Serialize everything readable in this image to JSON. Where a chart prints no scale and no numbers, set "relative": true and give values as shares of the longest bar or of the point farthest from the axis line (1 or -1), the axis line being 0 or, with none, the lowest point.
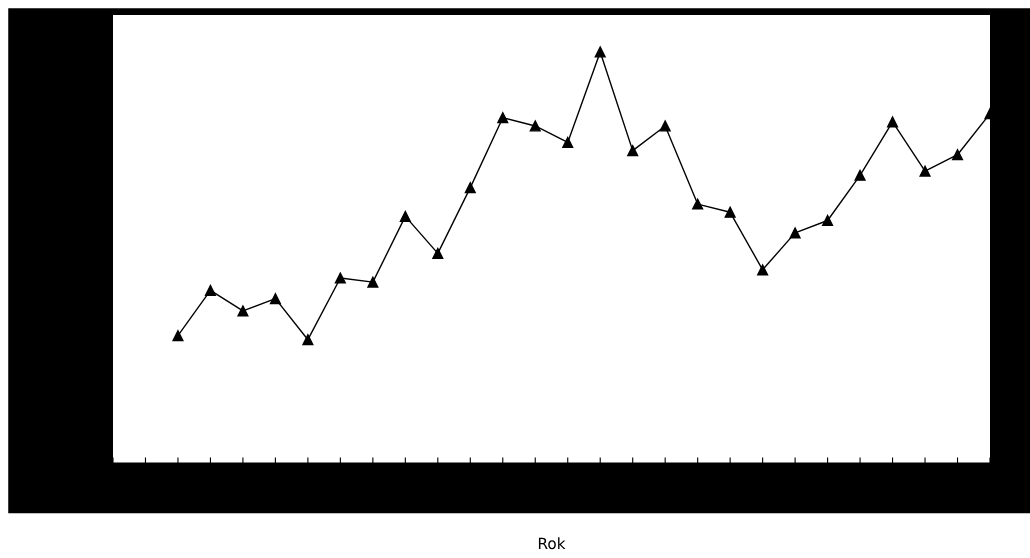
{
  "chart_data": {
    "type": "line",
    "relative": true,
    "xlabel": "Rok",
    "marker": "triangle",
    "line_style": "solid",
    "grid": false,
    "legend": false,
    "categories": [
      null,
      null,
      null,
      null,
      null,
      null,
      null,
      null,
      null,
      null,
      null,
      null,
      null,
      null,
      null,
      null,
      null,
      null,
      null,
      null,
      null,
      null,
      null,
      null,
      null,
      null,
      null,
      null
    ],
    "series": [
      {
        "color": "#000000",
        "values": [
          null,
          null,
          0.31,
          0.42,
          0.37,
          0.4,
          0.3,
          0.45,
          0.44,
          0.6,
          0.51,
          0.67,
          0.84,
          0.82,
          0.78,
          1.0,
          0.76,
          0.82,
          0.63,
          0.61,
          0.47,
          0.56,
          0.59,
          0.7,
          0.83,
          0.71,
          0.75,
          0.85
        ]
      }
    ]
  }
}
